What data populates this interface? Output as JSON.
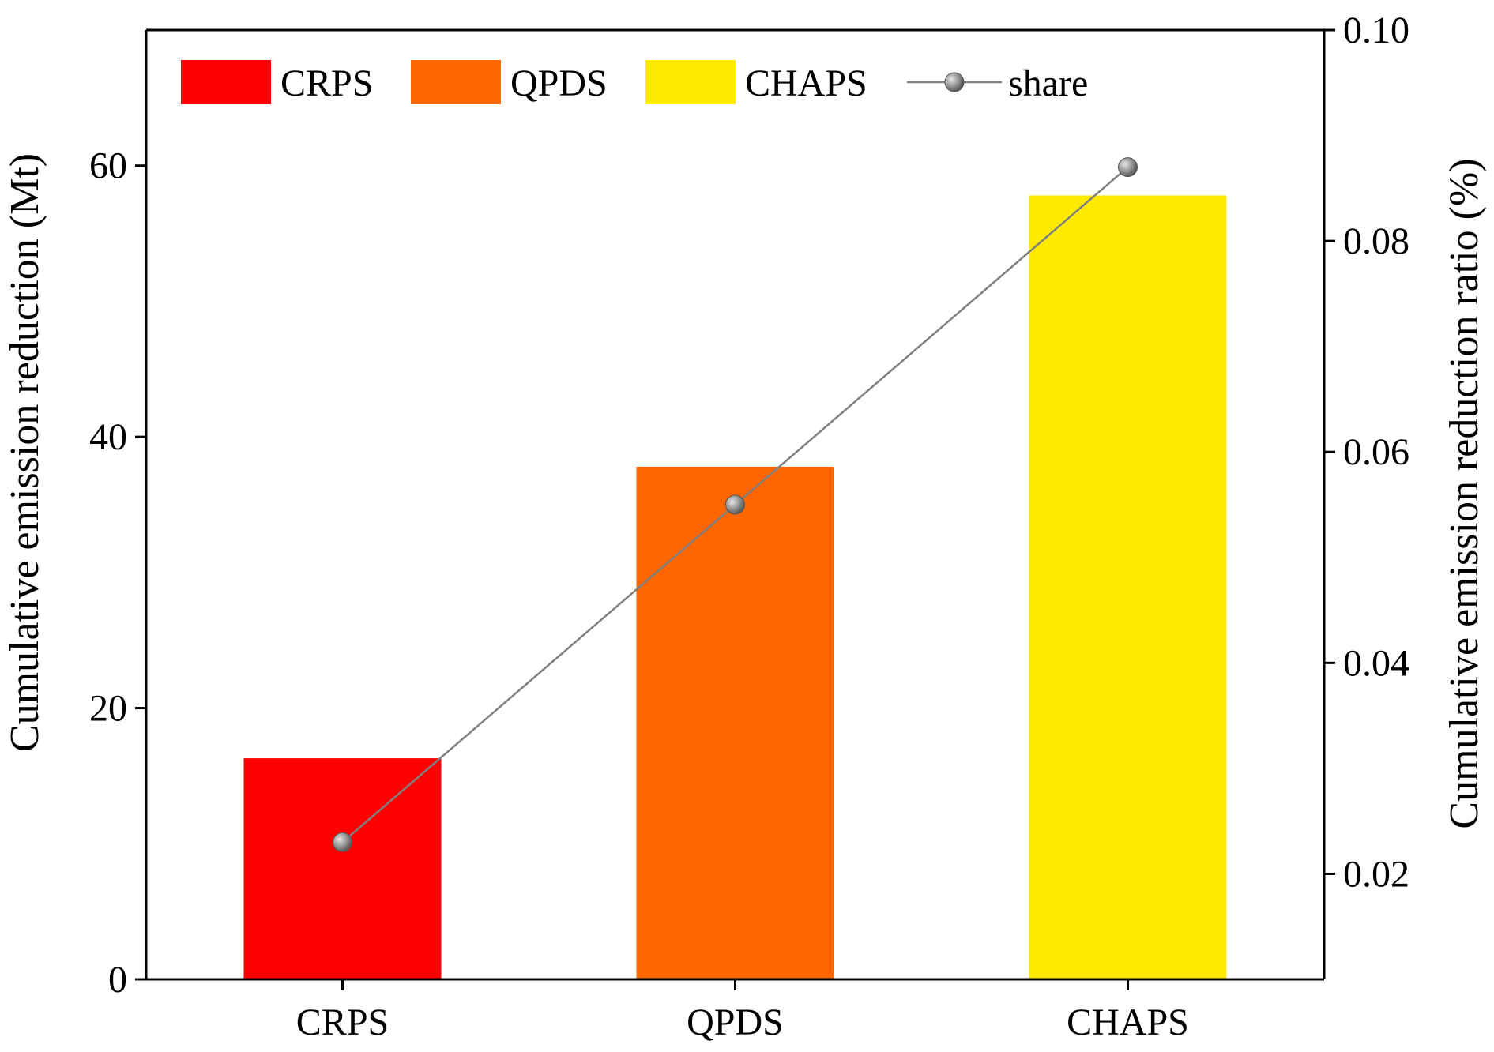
{
  "chart_data": {
    "type": "bar",
    "categories": [
      "CRPS",
      "QPDS",
      "CHAPS"
    ],
    "series": [
      {
        "name": "",
        "kind": "bar",
        "axis": "left",
        "values": [
          16.3,
          37.8,
          57.8
        ],
        "colors": [
          "#ff0000",
          "#ff6600",
          "#ffea00"
        ]
      },
      {
        "name": "share",
        "kind": "line",
        "axis": "right",
        "values": [
          0.023,
          0.055,
          0.087
        ],
        "color": "#7f7f7f"
      }
    ],
    "xlabel": "",
    "ylabel": "Cumulative emission reduction (Mt)",
    "y2label": "Cumulative emission reduction ratio (%)",
    "ylim": [
      0,
      70
    ],
    "y2lim": [
      0.01,
      0.1
    ],
    "yticks": [
      "0",
      "20",
      "40",
      "60"
    ],
    "y2ticks": [
      "0.02",
      "0.04",
      "0.06",
      "0.08",
      "0.10"
    ],
    "legend": {
      "placement": "top",
      "entries": [
        {
          "label": "CRPS",
          "color": "#ff0000",
          "kind": "bar"
        },
        {
          "label": "QPDS",
          "color": "#ff6600",
          "kind": "bar"
        },
        {
          "label": "CHAPS",
          "color": "#ffea00",
          "kind": "bar"
        },
        {
          "label": "share",
          "color": "#7f7f7f",
          "kind": "line"
        }
      ]
    },
    "grid": false
  }
}
